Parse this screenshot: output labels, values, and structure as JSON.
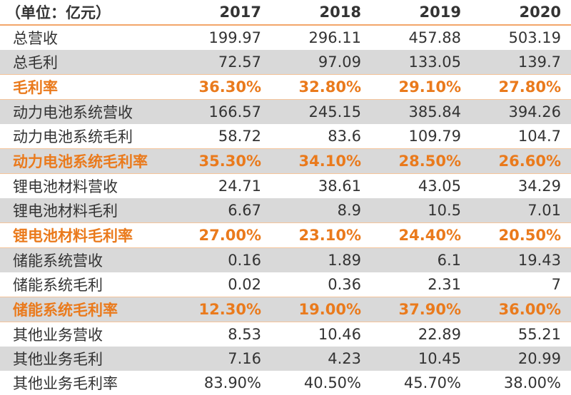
{
  "table": {
    "header": [
      "（单位：亿元）",
      "2017",
      "2018",
      "2019",
      "2020"
    ],
    "rows": [
      [
        "总营收",
        "199.97",
        "296.11",
        "457.88",
        "503.19"
      ],
      [
        "总毛利",
        "72.57",
        "97.09",
        "133.05",
        "139.7"
      ],
      [
        "毛利率",
        "36.30%",
        "32.80%",
        "29.10%",
        "27.80%"
      ],
      [
        "动力电池系统营收",
        "166.57",
        "245.15",
        "385.84",
        "394.26"
      ],
      [
        "动力电池系统毛利",
        "58.72",
        "83.6",
        "109.79",
        "104.7"
      ],
      [
        "动力电池系统毛利率",
        "35.30%",
        "34.10%",
        "28.50%",
        "26.60%"
      ],
      [
        "锂电池材料营收",
        "24.71",
        "38.61",
        "43.05",
        "34.29"
      ],
      [
        "锂电池材料毛利",
        "6.67",
        "8.9",
        "10.5",
        "7.01"
      ],
      [
        "锂电池材料毛利率",
        "27.00%",
        "23.10%",
        "24.40%",
        "20.50%"
      ],
      [
        "储能系统营收",
        "0.16",
        "1.89",
        "6.1",
        "19.43"
      ],
      [
        "储能系统毛利",
        "0.02",
        "0.36",
        "2.31",
        "7"
      ],
      [
        "储能系统毛利率",
        "12.30%",
        "19.00%",
        "37.90%",
        "36.00%"
      ],
      [
        "其他业务营收",
        "8.53",
        "10.46",
        "22.89",
        "55.21"
      ],
      [
        "其他业务毛利",
        "7.16",
        "4.23",
        "10.45",
        "20.99"
      ],
      [
        "其他业务毛利率",
        "83.90%",
        "40.50%",
        "45.70%",
        "38.00%"
      ]
    ]
  }
}
